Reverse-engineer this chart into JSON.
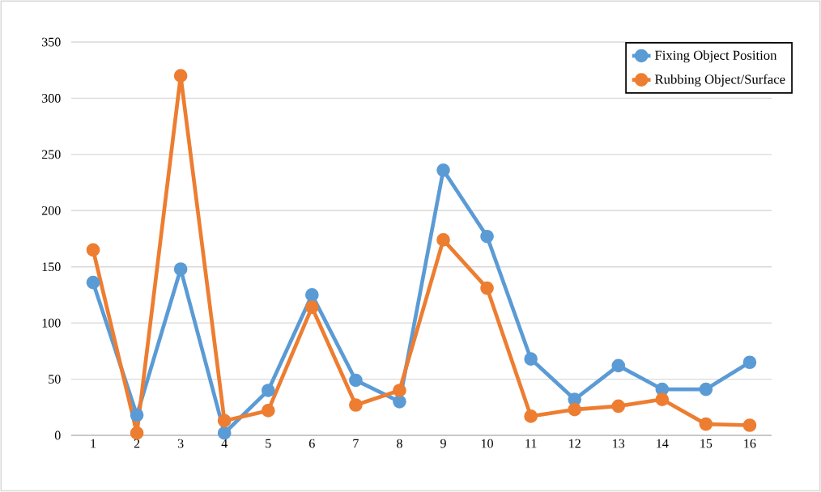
{
  "chart_data": {
    "type": "line",
    "categories": [
      "1",
      "2",
      "3",
      "4",
      "5",
      "6",
      "7",
      "8",
      "9",
      "10",
      "11",
      "12",
      "13",
      "14",
      "15",
      "16"
    ],
    "series": [
      {
        "name": "Fixing Object Position",
        "color": "#5b9bd5",
        "values": [
          136,
          18,
          148,
          2,
          40,
          125,
          49,
          30,
          236,
          177,
          68,
          32,
          62,
          41,
          41,
          65
        ]
      },
      {
        "name": "Rubbing Object/Surface",
        "color": "#ed7d31",
        "values": [
          165,
          2,
          320,
          13,
          22,
          114,
          27,
          40,
          174,
          131,
          17,
          23,
          26,
          32,
          10,
          9
        ]
      }
    ],
    "ylim": [
      0,
      350
    ],
    "yticks": [
      0,
      50,
      100,
      150,
      200,
      250,
      300,
      350
    ],
    "grid": "y",
    "legend": "top right",
    "marker": "circle",
    "line_style": "solid"
  }
}
